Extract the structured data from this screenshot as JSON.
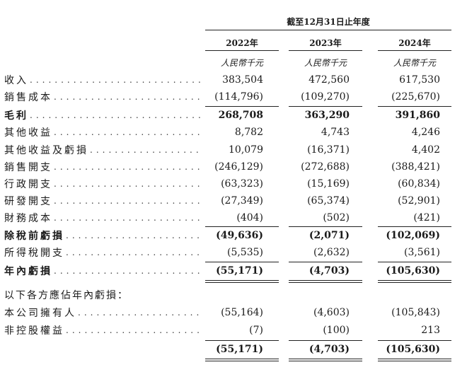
{
  "header": {
    "period": "截至12月31日止年度",
    "years": [
      "2022年",
      "2023年",
      "2024年"
    ],
    "unit": "人民幣千元"
  },
  "rows": [
    {
      "label": "收入",
      "values": [
        "383,504",
        "472,560",
        "617,530"
      ]
    },
    {
      "label": "銷售成本",
      "values": [
        "(114,796)",
        "(109,270)",
        "(225,670)"
      ]
    },
    {
      "label": "毛利",
      "values": [
        "268,708",
        "363,290",
        "391,860"
      ],
      "bold": true
    },
    {
      "label": "其他收益",
      "values": [
        "8,782",
        "4,743",
        "4,246"
      ]
    },
    {
      "label": "其他收益及虧損",
      "values": [
        "10,079",
        "(16,371)",
        "4,402"
      ]
    },
    {
      "label": "銷售開支",
      "values": [
        "(246,129)",
        "(272,688)",
        "(388,421)"
      ]
    },
    {
      "label": "行政開支",
      "values": [
        "(63,323)",
        "(15,169)",
        "(60,834)"
      ]
    },
    {
      "label": "研發開支",
      "values": [
        "(27,349)",
        "(65,374)",
        "(52,901)"
      ]
    },
    {
      "label": "財務成本",
      "values": [
        "(404)",
        "(502)",
        "(421)"
      ]
    },
    {
      "label": "除稅前虧損",
      "values": [
        "(49,636)",
        "(2,071)",
        "(102,069)"
      ],
      "bold": true
    },
    {
      "label": "所得稅開支",
      "values": [
        "(5,535)",
        "(2,632)",
        "(3,561)"
      ]
    },
    {
      "label": "年內虧損",
      "values": [
        "(55,171)",
        "(4,703)",
        "(105,630)"
      ],
      "bold": true
    },
    {
      "label": "以下各方應佔年內虧損：",
      "values": [
        "",
        "",
        ""
      ],
      "heading": true
    },
    {
      "label": "本公司擁有人",
      "values": [
        "(55,164)",
        "(4,603)",
        "(105,843)"
      ]
    },
    {
      "label": "非控股權益",
      "values": [
        "(7)",
        "(100)",
        "213"
      ]
    },
    {
      "label": "",
      "values": [
        "(55,171)",
        "(4,703)",
        "(105,630)"
      ],
      "bold": true
    }
  ]
}
